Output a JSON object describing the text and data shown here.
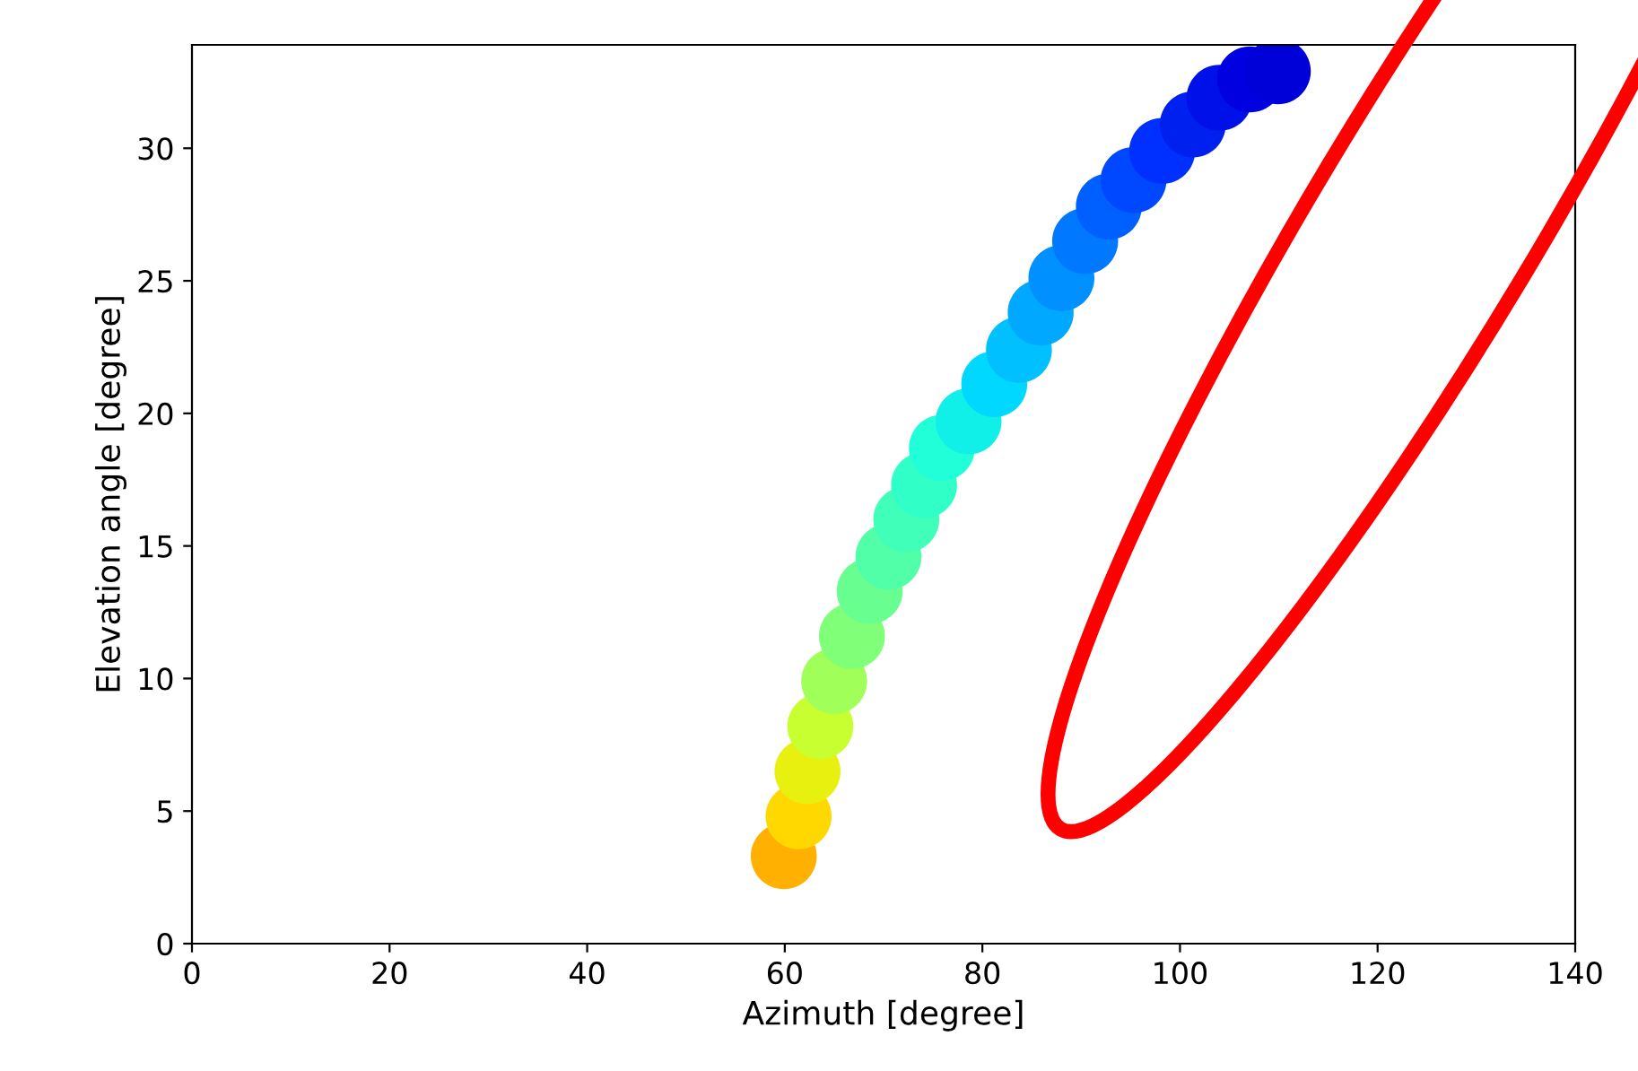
{
  "chart_data": {
    "type": "scatter",
    "xlabel": "Azimuth [degree]",
    "ylabel": "Elevation angle [degree]",
    "xlim": [
      0,
      140
    ],
    "xticks": [
      0,
      20,
      40,
      60,
      80,
      100,
      120,
      140
    ],
    "ylim": [
      0,
      33.9
    ],
    "yticks": [
      0,
      5,
      10,
      15,
      20,
      25,
      30
    ],
    "grid": false,
    "marker": "circle",
    "series": [
      {
        "x": [
          59.9,
          61.4,
          62.3,
          63.6,
          65.0,
          66.8,
          68.6,
          70.5,
          72.3,
          74.1,
          75.9,
          78.6,
          81.2,
          83.7,
          85.9,
          88.0,
          90.4,
          92.8,
          95.3,
          98.2,
          101.3,
          104.0,
          107.1,
          109.9
        ],
        "values": [
          3.3,
          4.8,
          6.5,
          8.2,
          9.9,
          11.6,
          13.3,
          14.6,
          16.0,
          17.3,
          18.7,
          19.7,
          21.1,
          22.4,
          23.8,
          25.1,
          26.5,
          27.8,
          28.8,
          29.9,
          30.9,
          31.9,
          32.6,
          32.9
        ],
        "colors": [
          "#ffb000",
          "#ffd800",
          "#e8f010",
          "#c8ff30",
          "#a0ff58",
          "#80ff78",
          "#68ff90",
          "#50ffa8",
          "#40ffb8",
          "#30ffc8",
          "#20ffd8",
          "#10f0e8",
          "#00d8ff",
          "#00c0ff",
          "#00a8ff",
          "#0090ff",
          "#0078ff",
          "#0060ff",
          "#0048ff",
          "#0030ff",
          "#0020f0",
          "#0010e8",
          "#0000e0",
          "#0000d8"
        ]
      }
    ]
  }
}
